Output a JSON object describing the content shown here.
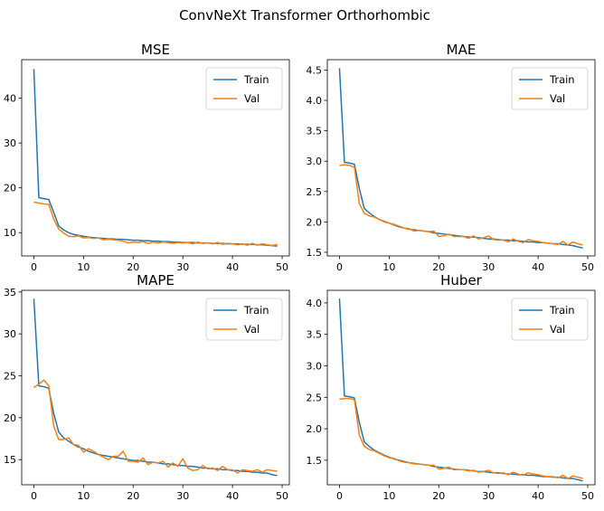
{
  "figure": {
    "suptitle": "ConvNeXt Transformer Orthorhombic",
    "colors": {
      "train": "#1f77b4",
      "val": "#ff7f0e",
      "axis": "#000000",
      "legend_border": "#cccccc"
    }
  },
  "chart_data": [
    {
      "type": "line",
      "title": "MSE",
      "xlabel": "",
      "ylabel": "",
      "xlim": [
        -2.45,
        51.45
      ],
      "ylim": [
        4.8,
        48.6
      ],
      "xticks": [
        0,
        10,
        20,
        30,
        40,
        50
      ],
      "yticks": [
        10,
        20,
        30,
        40
      ],
      "ytick_labels": [
        "10",
        "20",
        "30",
        "40"
      ],
      "grid": false,
      "legend": "upper right",
      "series": [
        {
          "name": "Train",
          "color": "#1f77b4",
          "values": [
            46.5,
            17.8,
            17.6,
            17.4,
            14.5,
            11.5,
            10.6,
            10.0,
            9.6,
            9.4,
            9.2,
            9.0,
            8.9,
            8.8,
            8.7,
            8.6,
            8.6,
            8.5,
            8.5,
            8.4,
            8.3,
            8.3,
            8.2,
            8.2,
            8.1,
            8.1,
            8.0,
            8.0,
            7.9,
            7.9,
            7.8,
            7.8,
            7.8,
            7.7,
            7.7,
            7.7,
            7.6,
            7.6,
            7.6,
            7.5,
            7.5,
            7.5,
            7.4,
            7.4,
            7.4,
            7.3,
            7.3,
            7.2,
            7.1,
            7.0
          ]
        },
        {
          "name": "Val",
          "color": "#ff7f0e",
          "values": [
            16.8,
            16.6,
            16.4,
            16.3,
            13.0,
            10.8,
            9.9,
            9.2,
            9.1,
            9.3,
            8.8,
            8.9,
            8.7,
            8.8,
            8.4,
            8.5,
            8.4,
            8.3,
            8.1,
            7.7,
            7.9,
            7.8,
            8.0,
            7.6,
            7.9,
            7.7,
            7.9,
            7.8,
            7.6,
            7.8,
            7.7,
            7.8,
            7.5,
            7.9,
            7.6,
            7.7,
            7.5,
            7.8,
            7.4,
            7.6,
            7.5,
            7.3,
            7.5,
            7.2,
            7.6,
            7.2,
            7.5,
            7.3,
            7.1,
            7.4
          ]
        }
      ]
    },
    {
      "type": "line",
      "title": "MAE",
      "xlabel": "",
      "ylabel": "",
      "xlim": [
        -2.45,
        51.45
      ],
      "ylim": [
        1.44,
        4.67
      ],
      "xticks": [
        0,
        10,
        20,
        30,
        40,
        50
      ],
      "yticks": [
        1.5,
        2.0,
        2.5,
        3.0,
        3.5,
        4.0,
        4.5
      ],
      "ytick_labels": [
        "1.5",
        "2.0",
        "2.5",
        "3.0",
        "3.5",
        "4.0",
        "4.5"
      ],
      "grid": false,
      "legend": "upper right",
      "series": [
        {
          "name": "Train",
          "color": "#1f77b4",
          "values": [
            4.53,
            2.98,
            2.97,
            2.95,
            2.55,
            2.22,
            2.15,
            2.09,
            2.04,
            2.01,
            1.98,
            1.95,
            1.92,
            1.9,
            1.88,
            1.87,
            1.86,
            1.85,
            1.84,
            1.82,
            1.81,
            1.8,
            1.79,
            1.78,
            1.77,
            1.76,
            1.75,
            1.75,
            1.74,
            1.73,
            1.72,
            1.72,
            1.71,
            1.7,
            1.7,
            1.69,
            1.69,
            1.68,
            1.67,
            1.67,
            1.66,
            1.66,
            1.65,
            1.64,
            1.64,
            1.63,
            1.62,
            1.61,
            1.59,
            1.57
          ]
        },
        {
          "name": "Val",
          "color": "#ff7f0e",
          "values": [
            2.93,
            2.94,
            2.93,
            2.9,
            2.3,
            2.14,
            2.1,
            2.08,
            2.04,
            2.0,
            1.98,
            1.96,
            1.93,
            1.9,
            1.89,
            1.85,
            1.86,
            1.85,
            1.84,
            1.85,
            1.76,
            1.77,
            1.8,
            1.76,
            1.76,
            1.76,
            1.73,
            1.77,
            1.72,
            1.74,
            1.77,
            1.71,
            1.7,
            1.7,
            1.67,
            1.72,
            1.68,
            1.66,
            1.71,
            1.69,
            1.68,
            1.66,
            1.65,
            1.64,
            1.63,
            1.68,
            1.62,
            1.67,
            1.64,
            1.62
          ]
        }
      ]
    },
    {
      "type": "line",
      "title": "MAPE",
      "xlabel": "",
      "ylabel": "",
      "xlim": [
        -2.45,
        51.45
      ],
      "ylim": [
        12.0,
        35.2
      ],
      "xticks": [
        0,
        10,
        20,
        30,
        40,
        50
      ],
      "yticks": [
        15,
        20,
        25,
        30,
        35
      ],
      "ytick_labels": [
        "15",
        "20",
        "25",
        "30",
        "35"
      ],
      "grid": false,
      "legend": "upper right",
      "series": [
        {
          "name": "Train",
          "color": "#1f77b4",
          "values": [
            34.2,
            23.8,
            23.7,
            23.5,
            20.5,
            18.3,
            17.6,
            17.2,
            16.8,
            16.5,
            16.3,
            16.0,
            15.8,
            15.6,
            15.5,
            15.4,
            15.3,
            15.2,
            15.1,
            15.0,
            14.9,
            14.9,
            14.8,
            14.7,
            14.7,
            14.6,
            14.5,
            14.5,
            14.4,
            14.3,
            14.3,
            14.2,
            14.2,
            14.1,
            14.0,
            14.0,
            13.9,
            13.9,
            13.8,
            13.8,
            13.7,
            13.7,
            13.6,
            13.6,
            13.5,
            13.5,
            13.4,
            13.4,
            13.2,
            13.1
          ]
        },
        {
          "name": "Val",
          "color": "#ff7f0e",
          "values": [
            23.6,
            24.0,
            24.5,
            23.8,
            19.0,
            17.4,
            17.4,
            17.6,
            16.8,
            16.7,
            15.9,
            16.3,
            16.0,
            15.6,
            15.3,
            15.0,
            15.4,
            15.4,
            16.0,
            14.8,
            14.8,
            14.7,
            15.2,
            14.4,
            14.7,
            14.6,
            14.8,
            14.1,
            14.6,
            14.2,
            15.1,
            14.0,
            13.7,
            13.8,
            14.3,
            13.9,
            14.0,
            13.7,
            14.2,
            13.8,
            13.8,
            13.4,
            13.8,
            13.7,
            13.6,
            13.8,
            13.5,
            13.8,
            13.7,
            13.6
          ]
        }
      ]
    },
    {
      "type": "line",
      "title": "Huber",
      "xlabel": "",
      "ylabel": "",
      "xlim": [
        -2.45,
        51.45
      ],
      "ylim": [
        1.11,
        4.2
      ],
      "xticks": [
        0,
        10,
        20,
        30,
        40,
        50
      ],
      "yticks": [
        1.5,
        2.0,
        2.5,
        3.0,
        3.5,
        4.0
      ],
      "ytick_labels": [
        "1.5",
        "2.0",
        "2.5",
        "3.0",
        "3.5",
        "4.0"
      ],
      "grid": false,
      "legend": "upper right",
      "series": [
        {
          "name": "Train",
          "color": "#1f77b4",
          "values": [
            4.07,
            2.52,
            2.51,
            2.49,
            2.1,
            1.79,
            1.72,
            1.66,
            1.62,
            1.58,
            1.55,
            1.52,
            1.5,
            1.48,
            1.46,
            1.45,
            1.44,
            1.43,
            1.42,
            1.4,
            1.39,
            1.38,
            1.37,
            1.36,
            1.35,
            1.35,
            1.34,
            1.33,
            1.32,
            1.32,
            1.31,
            1.3,
            1.3,
            1.29,
            1.28,
            1.28,
            1.27,
            1.27,
            1.26,
            1.26,
            1.25,
            1.24,
            1.24,
            1.23,
            1.23,
            1.22,
            1.21,
            1.21,
            1.19,
            1.17
          ]
        },
        {
          "name": "Val",
          "color": "#ff7f0e",
          "values": [
            2.47,
            2.48,
            2.48,
            2.46,
            1.9,
            1.72,
            1.67,
            1.65,
            1.61,
            1.57,
            1.54,
            1.53,
            1.49,
            1.47,
            1.46,
            1.44,
            1.44,
            1.43,
            1.42,
            1.42,
            1.36,
            1.37,
            1.39,
            1.35,
            1.35,
            1.35,
            1.33,
            1.34,
            1.31,
            1.32,
            1.34,
            1.3,
            1.29,
            1.3,
            1.27,
            1.31,
            1.28,
            1.26,
            1.3,
            1.28,
            1.27,
            1.25,
            1.24,
            1.24,
            1.22,
            1.26,
            1.21,
            1.25,
            1.23,
            1.21
          ]
        }
      ]
    }
  ]
}
